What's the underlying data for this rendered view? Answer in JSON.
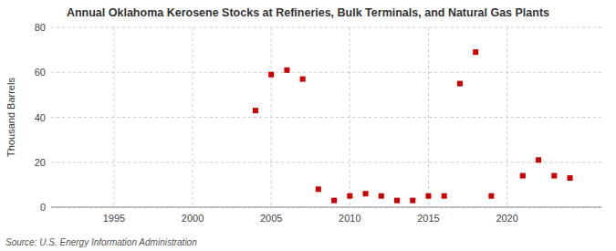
{
  "chart_data": {
    "type": "scatter",
    "title": "Annual Oklahoma Kerosene Stocks at Refineries, Bulk Terminals, and Natural Gas Plants",
    "ylabel": "Thousand Barrels",
    "source": "Source: U.S. Energy Information Administration",
    "x": [
      2004,
      2005,
      2006,
      2007,
      2008,
      2009,
      2010,
      2011,
      2012,
      2013,
      2014,
      2015,
      2016,
      2017,
      2018,
      2019,
      2021,
      2022,
      2023,
      2024
    ],
    "values": [
      43,
      59,
      61,
      57,
      8,
      3,
      5,
      6,
      5,
      3,
      3,
      5,
      5,
      55,
      69,
      5,
      14,
      21,
      14,
      13
    ],
    "color": "#cc0000",
    "marker": "square",
    "xlim": [
      1991,
      2026
    ],
    "ylim": [
      0,
      80
    ],
    "xticks": [
      1995,
      2000,
      2005,
      2010,
      2015,
      2020
    ],
    "yticks": [
      0,
      20,
      40,
      60,
      80
    ],
    "grid": true
  }
}
